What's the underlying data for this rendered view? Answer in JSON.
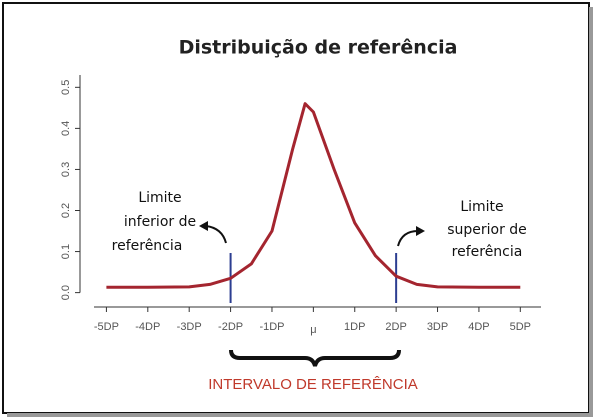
{
  "chart_data": {
    "type": "line",
    "title": "Distribuição de referência",
    "x": [
      -5,
      -4,
      -3,
      -2.5,
      -2,
      -1.5,
      -1,
      -0.5,
      -0.2,
      0,
      0.5,
      1,
      1.5,
      2,
      2.5,
      3,
      4,
      5
    ],
    "series": [
      {
        "color": "#a4252f",
        "values": [
          0.013,
          0.013,
          0.014,
          0.02,
          0.035,
          0.07,
          0.15,
          0.35,
          0.46,
          0.44,
          0.3,
          0.17,
          0.09,
          0.04,
          0.02,
          0.014,
          0.013,
          0.013
        ]
      }
    ],
    "xlim": [
      -5.3,
      5.5
    ],
    "ylim": [
      -0.035,
      0.53
    ],
    "xticks": [
      {
        "value": -5,
        "label": "-5DP"
      },
      {
        "value": -4,
        "label": "-4DP"
      },
      {
        "value": -3,
        "label": "-3DP"
      },
      {
        "value": -2,
        "label": "-2DP"
      },
      {
        "value": -1,
        "label": "-1DP"
      },
      {
        "value": 0,
        "label": "μ"
      },
      {
        "value": 1,
        "label": "1DP"
      },
      {
        "value": 2,
        "label": "2DP"
      },
      {
        "value": 3,
        "label": "3DP"
      },
      {
        "value": 4,
        "label": "4DP"
      },
      {
        "value": 5,
        "label": "5DP"
      }
    ],
    "yticks": [
      {
        "value": 0,
        "label": "0.0"
      },
      0.1,
      0.2,
      0.3,
      0.4,
      0.5
    ],
    "reference_lines": {
      "x": [
        -2,
        2
      ],
      "color": "#2c3e91"
    },
    "annotations": {
      "lower": [
        "Limite",
        "inferior de",
        "referência"
      ],
      "upper": [
        "Limite",
        "superior de",
        "referência"
      ],
      "interval": "INTERVALO DE REFERÊNCIA"
    }
  }
}
